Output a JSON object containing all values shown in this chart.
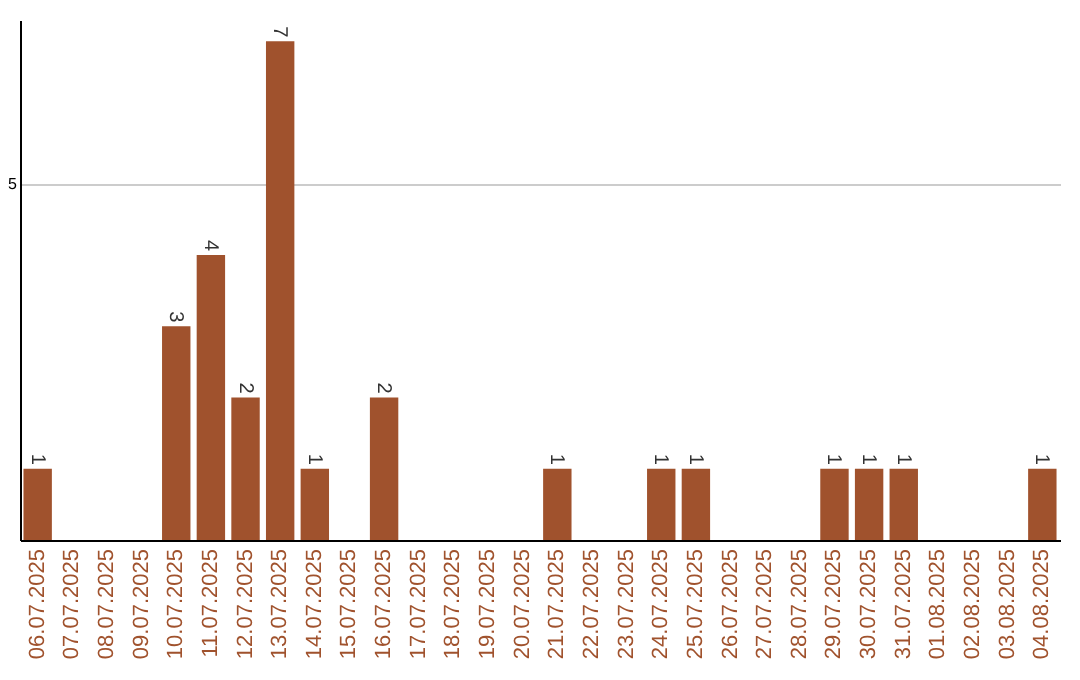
{
  "chart_data": {
    "type": "bar",
    "categories": [
      "06.07.2025",
      "07.07.2025",
      "08.07.2025",
      "09.07.2025",
      "10.07.2025",
      "11.07.2025",
      "12.07.2025",
      "13.07.2025",
      "14.07.2025",
      "15.07.2025",
      "16.07.2025",
      "17.07.2025",
      "18.07.2025",
      "19.07.2025",
      "20.07.2025",
      "21.07.2025",
      "22.07.2025",
      "23.07.2025",
      "24.07.2025",
      "25.07.2025",
      "26.07.2025",
      "27.07.2025",
      "28.07.2025",
      "29.07.2025",
      "30.07.2025",
      "31.07.2025",
      "01.08.2025",
      "02.08.2025",
      "03.08.2025",
      "04.08.2025"
    ],
    "values": [
      1,
      0,
      0,
      0,
      3,
      4,
      2,
      7,
      1,
      0,
      2,
      0,
      0,
      0,
      0,
      1,
      0,
      0,
      1,
      1,
      0,
      0,
      0,
      1,
      1,
      1,
      0,
      0,
      0,
      1
    ],
    "value_labels": [
      "1",
      null,
      null,
      null,
      "3",
      "4",
      "2",
      "7",
      "1",
      null,
      "2",
      null,
      null,
      null,
      null,
      "1",
      null,
      null,
      "1",
      "1",
      null,
      null,
      null,
      "1",
      "1",
      "1",
      null,
      null,
      null,
      "1"
    ],
    "color": "#a0522d",
    "ylim": [
      0,
      7.3
    ],
    "yticks": [
      5
    ],
    "grid": "y"
  }
}
